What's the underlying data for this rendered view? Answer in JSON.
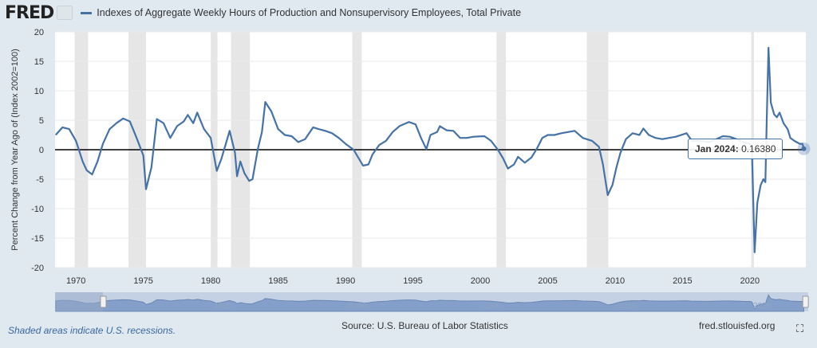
{
  "header": {
    "logo": "FRED",
    "series_label": "Indexes of Aggregate Weekly Hours of Production and Nonsupervisory Employees, Total Private"
  },
  "tooltip": {
    "date": "Jan 2024",
    "value": "0.16380"
  },
  "footer": {
    "recession_note": "Shaded areas indicate U.S. recessions.",
    "source": "Source: U.S. Bureau of Labor Statistics",
    "site": "fred.stlouisfed.org",
    "fullscreen_icon": "expand-icon"
  },
  "colors": {
    "line": "#4572a7",
    "recession": "#e6e6e6",
    "background": "#e1e9f0"
  },
  "navigator": {
    "labels": [
      "1970",
      "1980",
      "1990",
      "2000",
      "2010",
      "2020"
    ],
    "range": [
      1972,
      2024.1
    ]
  },
  "chart_data": {
    "type": "line",
    "title": "Indexes of Aggregate Weekly Hours of Production and Nonsupervisory Employees, Total Private",
    "xlabel": "",
    "ylabel": "Percent Change from Year Ago of (Index 2002=100)",
    "xlim": [
      1968.45,
      2024.15
    ],
    "ylim": [
      -20,
      20
    ],
    "yticks": [
      20,
      15,
      10,
      5,
      0,
      -5,
      -10,
      -15,
      -20
    ],
    "xticks": [
      1970,
      1975,
      1980,
      1985,
      1990,
      1995,
      2000,
      2005,
      2010,
      2015,
      2020
    ],
    "grid": true,
    "legend": "top-left",
    "recessions": [
      [
        1969.9,
        1970.9
      ],
      [
        1973.9,
        1975.2
      ],
      [
        1980.0,
        1980.5
      ],
      [
        1981.5,
        1982.9
      ],
      [
        1990.5,
        1991.2
      ],
      [
        2001.2,
        2001.9
      ],
      [
        2007.9,
        2009.5
      ],
      [
        2020.1,
        2020.3
      ]
    ],
    "series": [
      {
        "name": "Indexes of Aggregate Weekly Hours of Production and Nonsupervisory Employees, Total Private",
        "x": [
          1968.5,
          1969,
          1969.5,
          1970,
          1970.5,
          1970.8,
          1971.2,
          1971.6,
          1972,
          1972.5,
          1973,
          1973.5,
          1974,
          1974.5,
          1975,
          1975.2,
          1975.6,
          1976.0,
          1976.5,
          1977,
          1977.5,
          1978,
          1978.3,
          1978.7,
          1979.0,
          1979.5,
          1980,
          1980.45,
          1980.8,
          1981.4,
          1981.8,
          1981.95,
          1982.2,
          1982.5,
          1982.85,
          1983.1,
          1983.5,
          1983.8,
          1984.05,
          1984.5,
          1985,
          1985.5,
          1986,
          1986.5,
          1987,
          1987.6,
          1988,
          1988.5,
          1989,
          1989.5,
          1990,
          1990.6,
          1991.3,
          1991.7,
          1992,
          1992.5,
          1993,
          1993.5,
          1994,
          1994.7,
          1995.2,
          1995.6,
          1996.0,
          1996.3,
          1996.8,
          1997.0,
          1997.5,
          1998,
          1998.5,
          1999,
          1999.5,
          2000.3,
          2000.8,
          2001.3,
          2001.7,
          2002.05,
          2002.5,
          2002.8,
          2003.3,
          2003.8,
          2004.2,
          2004.6,
          2005,
          2005.5,
          2006,
          2006.5,
          2007,
          2007.6,
          2008.3,
          2008.8,
          2009.1,
          2009.45,
          2009.8,
          2010.1,
          2010.4,
          2010.8,
          2011.3,
          2011.8,
          2012.1,
          2012.5,
          2013,
          2013.5,
          2014,
          2014.5,
          2015.3,
          2015.7,
          2016.3,
          2017,
          2017.5,
          2018,
          2018.5,
          2019,
          2019.5,
          2020.0,
          2020.15,
          2020.35,
          2020.55,
          2020.8,
          2021.0,
          2021.15,
          2021.25,
          2021.38,
          2021.55,
          2021.8,
          2022,
          2022.2,
          2022.5,
          2022.8,
          2023,
          2023.3,
          2023.7,
          2023.9,
          2024.0
        ],
        "y": [
          2.5,
          3.8,
          3.5,
          1.5,
          -2,
          -3.5,
          -4.2,
          -2,
          1,
          3.5,
          4.5,
          5.3,
          4.8,
          2,
          -1,
          -6.7,
          -3,
          5.2,
          4.5,
          2,
          4,
          4.8,
          5.9,
          4.5,
          6.3,
          3.5,
          2,
          -3.6,
          -1.5,
          3.2,
          -0.5,
          -4.5,
          -2,
          -4,
          -5.3,
          -5,
          0.2,
          3,
          8.1,
          6.5,
          3.5,
          2.5,
          2.3,
          1.3,
          1.8,
          3.8,
          3.5,
          3.2,
          2.8,
          2,
          1,
          0,
          -2.7,
          -2.5,
          -0.8,
          0.8,
          1.5,
          3,
          4,
          4.7,
          4.3,
          2,
          0.1,
          2.5,
          3,
          4,
          3.3,
          3.2,
          2,
          2,
          2.2,
          2.3,
          1.5,
          0,
          -1.5,
          -3.2,
          -2.5,
          -1.2,
          -2.2,
          -1.3,
          0.2,
          2,
          2.5,
          2.5,
          2.8,
          3.0,
          3.2,
          2,
          1.5,
          0.5,
          -2.5,
          -7.7,
          -6,
          -3,
          -0.5,
          1.8,
          2.8,
          2.5,
          3.6,
          2.5,
          2,
          1.8,
          2.0,
          2.2,
          2.8,
          1.5,
          1.5,
          1.3,
          1.8,
          2.3,
          2.2,
          1.8,
          1.3,
          1.0,
          0,
          -17.4,
          -9,
          -6,
          -5,
          -5.5,
          5,
          17.3,
          8,
          6,
          5.5,
          6.3,
          4.5,
          3.5,
          2,
          1.5,
          1.0,
          1.0,
          0.1638
        ]
      }
    ]
  }
}
